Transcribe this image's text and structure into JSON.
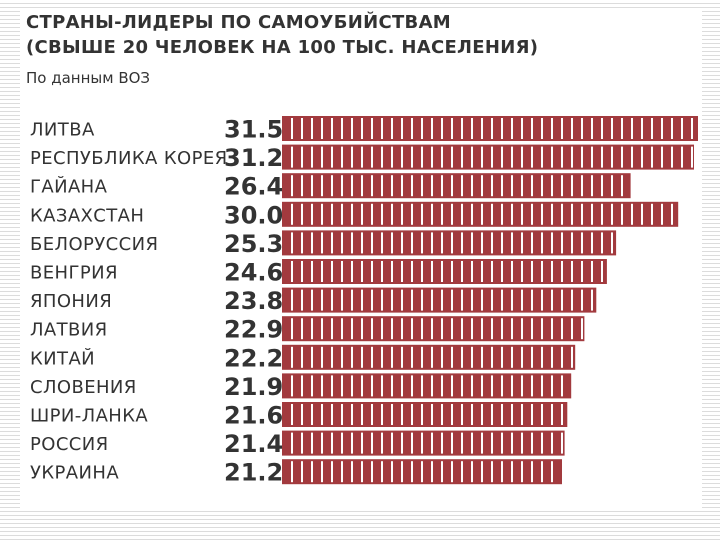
{
  "header": {
    "title_line1": "СТРАНЫ-ЛИДЕРЫ ПО САМОУБИЙСТВАМ",
    "title_line2": "(СВЫШЕ 20 ЧЕЛОВЕК НА 100 ТЫС. НАСЕЛЕНИЯ)",
    "subtitle": "По данным ВОЗ"
  },
  "colors": {
    "bar": "#A23A3E",
    "text": "#333333"
  },
  "chart_data": {
    "type": "bar",
    "orientation": "horizontal",
    "title": "СТРАНЫ-ЛИДЕРЫ ПО САМОУБИЙСТВАМ (СВЫШЕ 20 ЧЕЛОВЕК НА 100 ТЫС. НАСЕЛЕНИЯ)",
    "subtitle": "По данным ВОЗ",
    "categories": [
      "ЛИТВА",
      "РЕСПУБЛИКА КОРЕЯ",
      "ГАЙАНА",
      "КАЗАХСТАН",
      "БЕЛОРУССИЯ",
      "ВЕНГРИЯ",
      "ЯПОНИЯ",
      "ЛАТВИЯ",
      "КИТАЙ",
      "СЛОВЕНИЯ",
      "ШРИ-ЛАНКА",
      "РОССИЯ",
      "УКРАИНА"
    ],
    "labels": [
      "31.5",
      "31.2",
      "26.4",
      "30.0",
      "25.3",
      "24.6",
      "23.8",
      "22.9",
      "22.2",
      "21.9",
      "21.6",
      "21.4",
      "21.2"
    ],
    "values": [
      31.5,
      31.2,
      26.4,
      30.0,
      25.3,
      24.6,
      23.8,
      22.9,
      22.2,
      21.9,
      21.6,
      21.4,
      21.2
    ],
    "xlim": [
      0,
      31.5
    ],
    "grid": false,
    "legend": "none"
  }
}
